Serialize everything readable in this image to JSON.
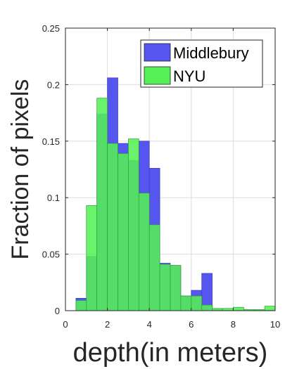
{
  "chart_data": {
    "type": "bar",
    "xlabel": "depth(in meters)",
    "ylabel": "Fraction of pixels",
    "xlim": [
      0,
      10
    ],
    "ylim": [
      0,
      0.25
    ],
    "xticks": [
      0,
      2,
      4,
      6,
      8,
      10
    ],
    "xtick_labels": [
      "0",
      "2",
      "4",
      "6",
      "8",
      "10"
    ],
    "yticks": [
      0,
      0.05,
      0.1,
      0.15,
      0.2,
      0.25
    ],
    "ytick_labels": [
      "0",
      "0.05",
      "0.1",
      "0.15",
      "0.2",
      "0.25"
    ],
    "grid": true,
    "legend_position": "top-right",
    "bin_edges": [
      0.5,
      1.0,
      1.5,
      2.0,
      2.5,
      3.0,
      3.5,
      4.0,
      4.5,
      5.0,
      5.5,
      6.0,
      6.5,
      7.0,
      7.5,
      8.0,
      8.5,
      9.0,
      9.5,
      10.0
    ],
    "series": [
      {
        "name": "Middlebury",
        "color": "#5555f0",
        "values": [
          0.011,
          0.048,
          0.174,
          0.206,
          0.148,
          0.133,
          0.15,
          0.126,
          0.042,
          0.04,
          0.013,
          0.018,
          0.033,
          0.001,
          0.0005,
          0.0005,
          0.0005,
          0.0005,
          0.0005
        ]
      },
      {
        "name": "NYU",
        "color": "#55f055",
        "values": [
          0.009,
          0.093,
          0.188,
          0.148,
          0.139,
          0.152,
          0.104,
          0.076,
          0.041,
          0.04,
          0.013,
          0.013,
          0.005,
          0.002,
          0.002,
          0.003,
          0.001,
          0.001,
          0.004
        ]
      }
    ]
  }
}
